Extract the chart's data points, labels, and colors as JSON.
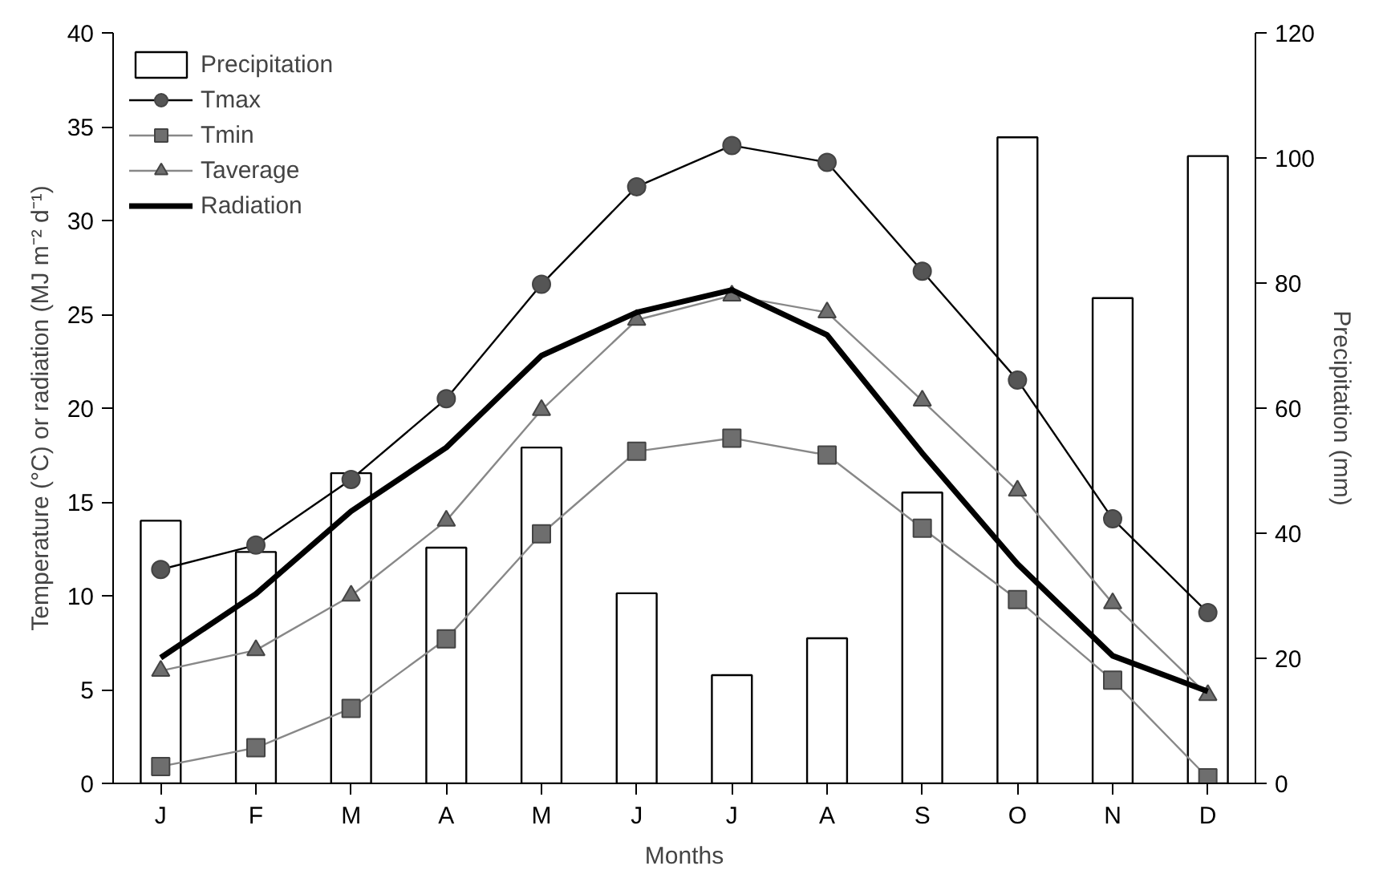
{
  "chart_data": {
    "type": "line",
    "categories": [
      "J",
      "F",
      "M",
      "A",
      "M",
      "J",
      "J",
      "A",
      "S",
      "O",
      "N",
      "D"
    ],
    "xlabel": "Months",
    "ylabel": "Temperature (°C) or radiation (MJ m⁻² d⁻¹)",
    "y2label": "Precipitation (mm)",
    "ylim": [
      0,
      40
    ],
    "yticks": [
      0,
      5,
      10,
      15,
      20,
      25,
      30,
      35,
      40
    ],
    "y2lim": [
      0,
      120
    ],
    "y2ticks": [
      0,
      20,
      40,
      60,
      80,
      100,
      120
    ],
    "grid": false,
    "legend": "top left",
    "line_style": "solid",
    "series": [
      {
        "name": "Precipitation",
        "type": "bar",
        "axis": "y2",
        "color": "#ffffff",
        "values": [
          42.0,
          37.0,
          49.6,
          37.7,
          53.7,
          30.4,
          17.3,
          23.2,
          46.5,
          103.3,
          77.6,
          100.3
        ]
      },
      {
        "name": "Tmax",
        "marker": "circle",
        "color": "#555555",
        "values": [
          11.4,
          12.7,
          16.2,
          20.5,
          26.6,
          31.8,
          34.0,
          33.1,
          27.3,
          21.5,
          14.1,
          9.1
        ]
      },
      {
        "name": "Tmin",
        "marker": "square",
        "color": "#6e6e6e",
        "values": [
          0.9,
          1.9,
          4.0,
          7.7,
          13.3,
          17.7,
          18.4,
          17.5,
          13.6,
          9.8,
          5.5,
          0.3
        ]
      },
      {
        "name": "Taverage",
        "marker": "triangle",
        "color": "#6e6e6e",
        "values": [
          6.0,
          7.1,
          10.0,
          14.0,
          19.9,
          24.7,
          26.0,
          25.1,
          20.4,
          15.6,
          9.6,
          4.7
        ]
      },
      {
        "name": "Radiation",
        "marker": "none",
        "color": "#000000",
        "values": [
          6.7,
          10.1,
          14.5,
          17.9,
          22.8,
          25.1,
          26.3,
          23.9,
          17.6,
          11.7,
          6.8,
          4.9
        ]
      }
    ]
  }
}
